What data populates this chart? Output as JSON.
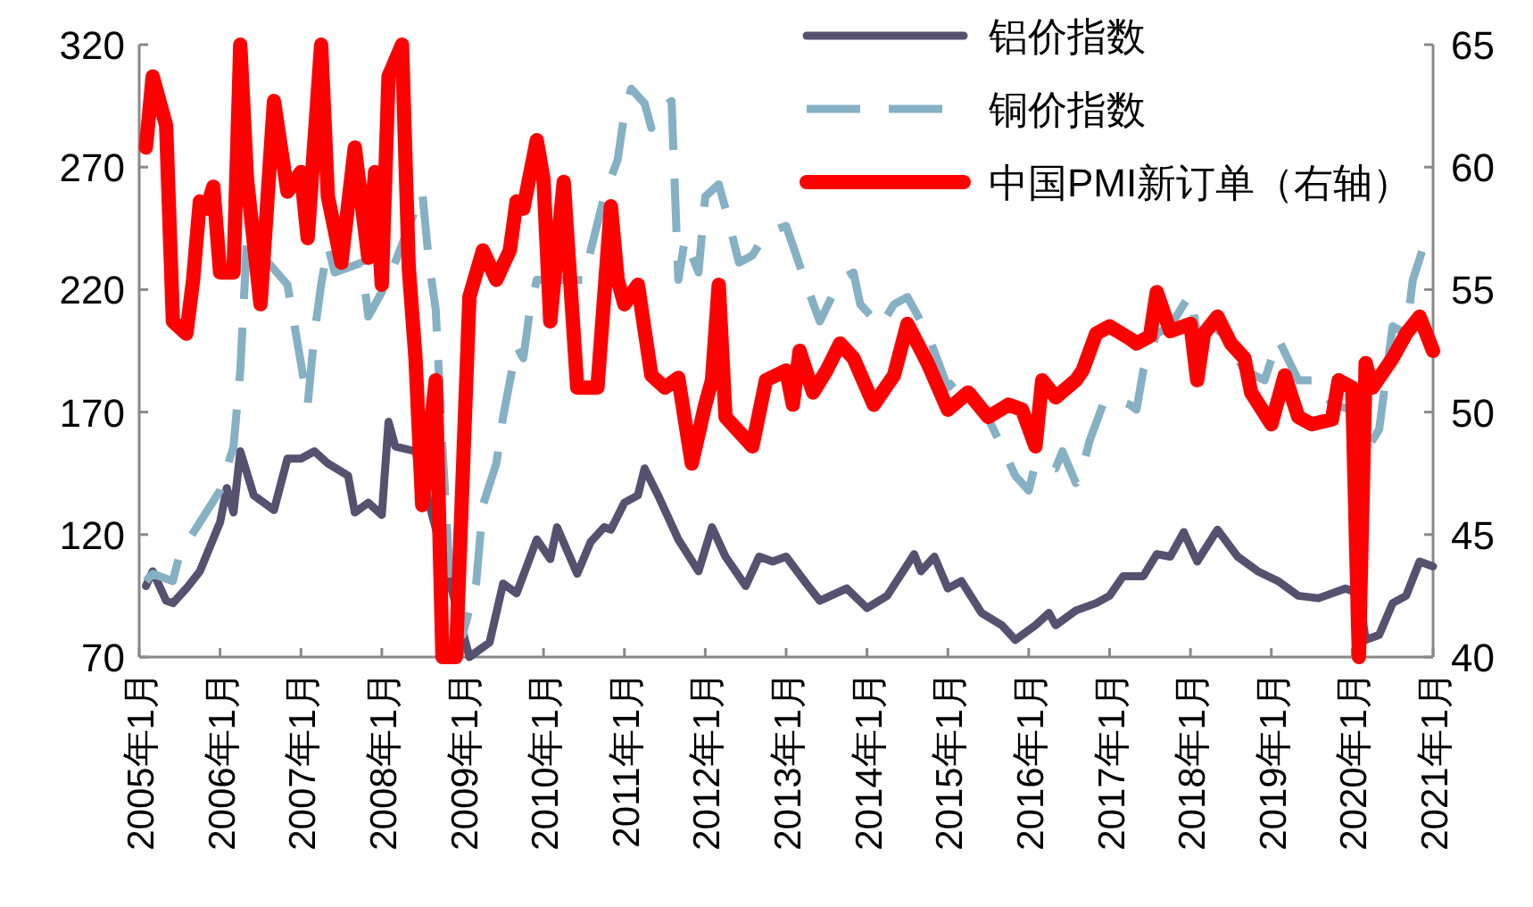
{
  "chart_data": {
    "type": "line",
    "xlim": [
      "2005-01",
      "2021-01"
    ],
    "xticks": [
      {
        "value": "2005-01",
        "label": "2005年1月"
      },
      {
        "value": "2006-01",
        "label": "2006年1月"
      },
      {
        "value": "2007-01",
        "label": "2007年1月"
      },
      {
        "value": "2008-01",
        "label": "2008年1月"
      },
      {
        "value": "2009-01",
        "label": "2009年1月"
      },
      {
        "value": "2010-01",
        "label": "2010年1月"
      },
      {
        "value": "2011-01",
        "label": "2011年1月"
      },
      {
        "value": "2012-01",
        "label": "2012年1月"
      },
      {
        "value": "2013-01",
        "label": "2013年1月"
      },
      {
        "value": "2014-01",
        "label": "2014年1月"
      },
      {
        "value": "2015-01",
        "label": "2015年1月"
      },
      {
        "value": "2016-01",
        "label": "2016年1月"
      },
      {
        "value": "2017-01",
        "label": "2017年1月"
      },
      {
        "value": "2018-01",
        "label": "2018年1月"
      },
      {
        "value": "2019-01",
        "label": "2019年1月"
      },
      {
        "value": "2020-01",
        "label": "2020年1月"
      },
      {
        "value": "2021-01",
        "label": "2021年1月"
      }
    ],
    "ylim": [
      70,
      320
    ],
    "yticks": [
      70,
      120,
      170,
      220,
      270,
      320
    ],
    "y2lim": [
      40,
      65
    ],
    "y2ticks": [
      40,
      45,
      50,
      55,
      60,
      65
    ],
    "grid": false,
    "legend": "top right",
    "series": [
      {
        "name": "铝价指数",
        "color": "#55516f",
        "line_style": "solid",
        "x": [
          "2005-02",
          "2005-03",
          "2005-05",
          "2005-06",
          "2005-08",
          "2005-10",
          "2006-01",
          "2006-02",
          "2006-03",
          "2006-04",
          "2006-06",
          "2006-09",
          "2006-11",
          "2007-01",
          "2007-03",
          "2007-05",
          "2007-08",
          "2007-09",
          "2007-11",
          "2008-01",
          "2008-02",
          "2008-03",
          "2008-06",
          "2009-02",
          "2009-05",
          "2009-07",
          "2009-09",
          "2009-12",
          "2010-02",
          "2010-03",
          "2010-06",
          "2010-08",
          "2010-10",
          "2010-11",
          "2011-01",
          "2011-03",
          "2011-04",
          "2011-06",
          "2011-09",
          "2011-12",
          "2012-02",
          "2012-04",
          "2012-07",
          "2012-09",
          "2012-11",
          "2013-01",
          "2013-04",
          "2013-06",
          "2013-10",
          "2014-01",
          "2014-04",
          "2014-08",
          "2014-09",
          "2014-11",
          "2015-01",
          "2015-03",
          "2015-06",
          "2015-09",
          "2015-11",
          "2016-02",
          "2016-04",
          "2016-05",
          "2016-08",
          "2016-11",
          "2017-01",
          "2017-03",
          "2017-06",
          "2017-08",
          "2017-10",
          "2017-12",
          "2018-02",
          "2018-05",
          "2018-08",
          "2018-11",
          "2019-02",
          "2019-05",
          "2019-08",
          "2019-12",
          "2020-02",
          "2020-03",
          "2020-05",
          "2020-07",
          "2020-09",
          "2020-11",
          "2021-01"
        ],
        "values": [
          99,
          105,
          93,
          92,
          98,
          105,
          125,
          139,
          129,
          154,
          136,
          130,
          151,
          151,
          154,
          149,
          144,
          129,
          133,
          128,
          166,
          156,
          154,
          70,
          76,
          100,
          96,
          118,
          110,
          123,
          104,
          117,
          123,
          122,
          133,
          136,
          147,
          136,
          118,
          105,
          123,
          111,
          99,
          111,
          109,
          111,
          100,
          93,
          98,
          90,
          95,
          112,
          105,
          111,
          98,
          101,
          88,
          83,
          77,
          83,
          88,
          83,
          89,
          92,
          95,
          103,
          103,
          112,
          111,
          121,
          109,
          122,
          111,
          105,
          101,
          95,
          94,
          98,
          96,
          77,
          79,
          92,
          95,
          109,
          107
        ]
      },
      {
        "name": "铜价指数",
        "color": "#86b0c4",
        "line_style": "dashed",
        "x": [
          "2005-02",
          "2005-03",
          "2005-06",
          "2005-07",
          "2005-10",
          "2006-01",
          "2006-03",
          "2006-04",
          "2006-05",
          "2006-11",
          "2007-01",
          "2007-02",
          "2007-03",
          "2007-04",
          "2007-05",
          "2007-06",
          "2007-10",
          "2007-11",
          "2008-02",
          "2008-07",
          "2008-08",
          "2008-09",
          "2008-10",
          "2008-11",
          "2009-01",
          "2009-03",
          "2009-04",
          "2009-06",
          "2009-07",
          "2009-09",
          "2009-10",
          "2009-11",
          "2009-12",
          "2010-03",
          "2010-07",
          "2010-08",
          "2010-10",
          "2010-12",
          "2011-01",
          "2011-02",
          "2011-04",
          "2011-05",
          "2011-06",
          "2011-08",
          "2011-09",
          "2011-10",
          "2011-12",
          "2012-01",
          "2012-03",
          "2012-04",
          "2012-06",
          "2012-08",
          "2012-10",
          "2013-01",
          "2013-02",
          "2013-04",
          "2013-06",
          "2013-09",
          "2013-11",
          "2013-12",
          "2014-03",
          "2014-05",
          "2014-07",
          "2014-10",
          "2015-01",
          "2015-03",
          "2015-06",
          "2015-09",
          "2015-11",
          "2016-01",
          "2016-02",
          "2016-05",
          "2016-06",
          "2016-08",
          "2016-09",
          "2016-10",
          "2016-12",
          "2017-01",
          "2017-04",
          "2017-05",
          "2017-06",
          "2017-08",
          "2017-10",
          "2017-12",
          "2018-01",
          "2018-02",
          "2018-04",
          "2018-06",
          "2018-09",
          "2018-12",
          "2019-02",
          "2019-05",
          "2019-08",
          "2019-10",
          "2020-01",
          "2020-03",
          "2020-05",
          "2020-07",
          "2020-09",
          "2020-10",
          "2020-12"
        ],
        "values": [
          101,
          104,
          101,
          112,
          125,
          138,
          156,
          187,
          241,
          222,
          190,
          173,
          202,
          222,
          238,
          227,
          231,
          209,
          224,
          260,
          231,
          212,
          156,
          107,
          79,
          100,
          132,
          149,
          168,
          197,
          192,
          212,
          224,
          224,
          224,
          236,
          258,
          273,
          292,
          302,
          296,
          286,
          293,
          297,
          224,
          241,
          227,
          258,
          263,
          253,
          231,
          234,
          243,
          246,
          238,
          222,
          207,
          224,
          227,
          214,
          205,
          214,
          217,
          202,
          180,
          185,
          173,
          156,
          144,
          138,
          149,
          147,
          154,
          141,
          147,
          158,
          173,
          176,
          173,
          171,
          187,
          202,
          205,
          214,
          218,
          202,
          205,
          202,
          187,
          183,
          200,
          183,
          183,
          173,
          171,
          154,
          163,
          205,
          202,
          224,
          241
        ]
      },
      {
        "name": "中国PMI新订单（右轴）",
        "color": "#ff0000",
        "line_style": "solid",
        "axis": "y2",
        "x": [
          "2005-02",
          "2005-03",
          "2005-05",
          "2005-06",
          "2005-08",
          "2005-09",
          "2005-10",
          "2005-11",
          "2005-12",
          "2006-01",
          "2006-03",
          "2006-04",
          "2006-05",
          "2006-07",
          "2006-09",
          "2006-11",
          "2007-01",
          "2007-02",
          "2007-04",
          "2007-05",
          "2007-07",
          "2007-09",
          "2007-11",
          "2007-12",
          "2008-01",
          "2008-02",
          "2008-04",
          "2008-05",
          "2008-06",
          "2008-07",
          "2008-09",
          "2008-10",
          "2008-12",
          "2009-02",
          "2009-04",
          "2009-06",
          "2009-08",
          "2009-09",
          "2009-10",
          "2009-12",
          "2010-01",
          "2010-02",
          "2010-04",
          "2010-06",
          "2010-09",
          "2010-11",
          "2010-12",
          "2011-01",
          "2011-03",
          "2011-05",
          "2011-07",
          "2011-09",
          "2011-11",
          "2012-01",
          "2012-02",
          "2012-03",
          "2012-04",
          "2012-08",
          "2012-10",
          "2013-01",
          "2013-02",
          "2013-03",
          "2013-05",
          "2013-07",
          "2013-09",
          "2013-11",
          "2014-02",
          "2014-05",
          "2014-07",
          "2014-10",
          "2015-01",
          "2015-04",
          "2015-07",
          "2015-10",
          "2015-12",
          "2016-02",
          "2016-03",
          "2016-05",
          "2016-08",
          "2016-09",
          "2016-11",
          "2017-01",
          "2017-04",
          "2017-05",
          "2017-07",
          "2017-08",
          "2017-10",
          "2018-01",
          "2018-02",
          "2018-03",
          "2018-05",
          "2018-07",
          "2018-09",
          "2018-10",
          "2019-01",
          "2019-03",
          "2019-05",
          "2019-07",
          "2019-10",
          "2019-11",
          "2020-01",
          "2020-02",
          "2020-03",
          "2020-04",
          "2020-07",
          "2020-09",
          "2020-11",
          "2021-01"
        ],
        "values": [
          60.8,
          63.7,
          61.7,
          53.7,
          53.2,
          55.4,
          58.6,
          58.3,
          59.2,
          55.7,
          55.7,
          65,
          59.5,
          54.4,
          62.7,
          59,
          59.8,
          57.1,
          65,
          58.8,
          56.1,
          60.8,
          56.3,
          59.8,
          55.2,
          63.7,
          65,
          55.9,
          52.2,
          46.2,
          51.3,
          40,
          40,
          54.7,
          56.6,
          55.4,
          56.6,
          58.6,
          58.3,
          61.1,
          59.5,
          53.7,
          59.4,
          51,
          51,
          58.4,
          55.4,
          54.4,
          55.2,
          51.5,
          51,
          51.4,
          47.9,
          50.3,
          51.3,
          55.2,
          49.8,
          48.6,
          51.3,
          51.7,
          50.3,
          52.5,
          50.8,
          51.7,
          52.8,
          52.2,
          50.3,
          51.5,
          53.6,
          52,
          50.1,
          50.8,
          49.8,
          50.3,
          50.1,
          48.6,
          51.3,
          50.6,
          51.3,
          51.7,
          53.2,
          53.5,
          53,
          52.8,
          53.1,
          54.9,
          53.3,
          53.6,
          51.3,
          53.2,
          53.9,
          52.8,
          52.2,
          50.8,
          49.5,
          51.5,
          49.8,
          49.5,
          49.7,
          51.3,
          51,
          40,
          52,
          51,
          52.2,
          53.2,
          53.9,
          52.5
        ]
      }
    ]
  }
}
